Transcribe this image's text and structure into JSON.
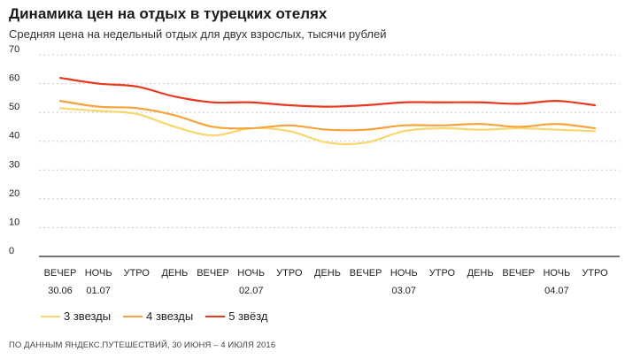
{
  "chart_data": {
    "type": "line",
    "title": "Динамика цен на отдых в турецких отелях",
    "subtitle": "Средняя цена на недельный отдых для двух взрослых, тысячи рублей",
    "source": "ПО ДАННЫМ ЯНДЕКС.ПУТЕШЕСТВИЙ, 30 ИЮНЯ – 4 ИЮЛЯ 2016",
    "ylim": [
      0,
      70
    ],
    "yticks": [
      "0",
      "10",
      "20",
      "30",
      "40",
      "50",
      "60",
      "70"
    ],
    "categories": [
      "ВЕЧЕР",
      "НОЧЬ",
      "УТРО",
      "ДЕНЬ",
      "ВЕЧЕР",
      "НОЧЬ",
      "УТРО",
      "ДЕНЬ",
      "ВЕЧЕР",
      "НОЧЬ",
      "УТРО",
      "ДЕНЬ",
      "ВЕЧЕР",
      "НОЧЬ",
      "УТРО"
    ],
    "dates": [
      "30.06",
      "01.07",
      "",
      "",
      "",
      "02.07",
      "",
      "",
      "",
      "03.07",
      "",
      "",
      "",
      "04.07",
      ""
    ],
    "grid": true,
    "legend_position": "bottom-left",
    "series": [
      {
        "name": "3 звезды",
        "color": "#f9d66b",
        "values": [
          51.5,
          50.5,
          49.5,
          45,
          42,
          44.5,
          43.5,
          39.5,
          39.5,
          43.5,
          44.5,
          44,
          44.5,
          44,
          43.5
        ]
      },
      {
        "name": "4 звезды",
        "color": "#f5a33b",
        "values": [
          54,
          52,
          51.5,
          49,
          45,
          44.5,
          45.5,
          44,
          44,
          45.5,
          45.5,
          46,
          45,
          46,
          44.5
        ]
      },
      {
        "name": "5 звёзд",
        "color": "#e8391e",
        "values": [
          62,
          60,
          59,
          55.5,
          53.5,
          53.5,
          52.5,
          52,
          52.5,
          53.5,
          53.5,
          53.5,
          53,
          54,
          52.5
        ]
      }
    ]
  }
}
